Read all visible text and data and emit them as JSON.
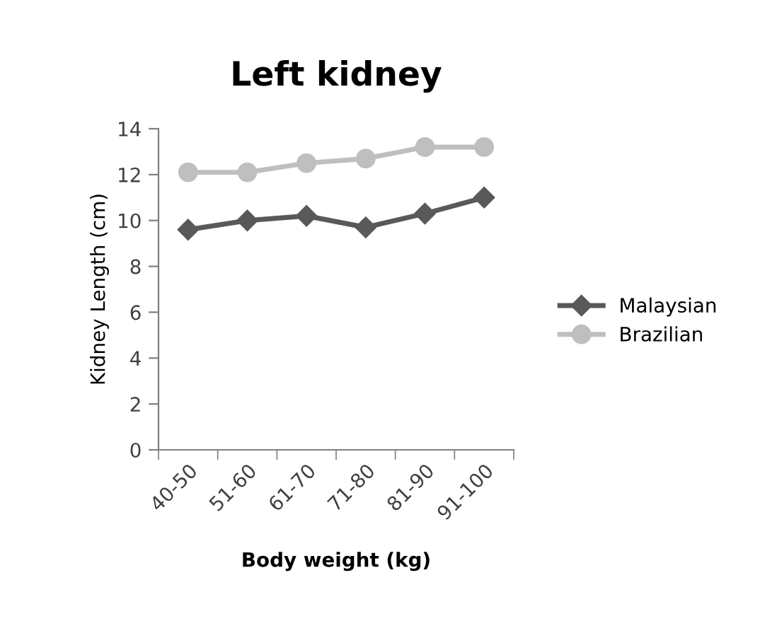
{
  "chart_data": {
    "type": "line",
    "title": "Left kidney",
    "xlabel": "Body weight (kg)",
    "ylabel": "Kidney Length (cm)",
    "categories": [
      "40-50",
      "51-60",
      "61-70",
      "71-80",
      "81-90",
      "91-100"
    ],
    "series": [
      {
        "name": "Malaysian",
        "color": "#595959",
        "marker": "diamond",
        "values": [
          9.6,
          10.0,
          10.2,
          9.7,
          10.3,
          11.0
        ]
      },
      {
        "name": "Brazilian",
        "color": "#bfbfbf",
        "marker": "circle",
        "values": [
          12.1,
          12.1,
          12.5,
          12.7,
          13.2,
          13.2
        ]
      }
    ],
    "ylim": [
      0,
      14
    ],
    "yticks": [
      0,
      2,
      4,
      6,
      8,
      10,
      12,
      14
    ],
    "grid": false,
    "legend": "right",
    "line_style": "solid"
  }
}
